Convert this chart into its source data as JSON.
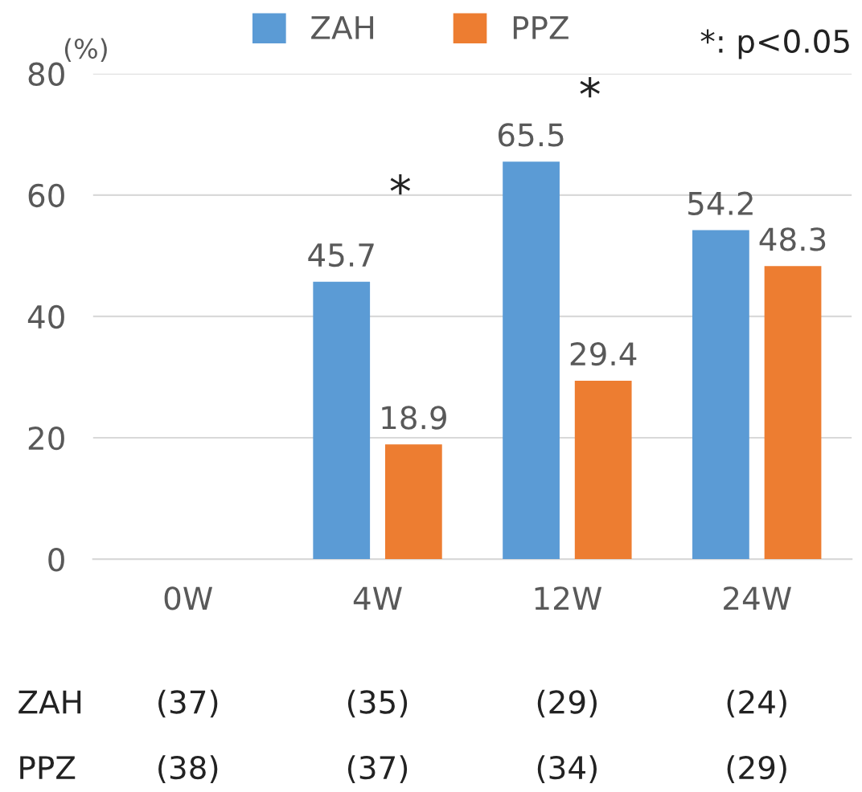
{
  "chart_data": {
    "type": "bar",
    "ylabel": "(%)",
    "categories": [
      "0W",
      "4W",
      "12W",
      "24W"
    ],
    "series": [
      {
        "name": "ZAH",
        "color": "#5b9bd5",
        "values": [
          null,
          45.7,
          65.5,
          54.2
        ]
      },
      {
        "name": "PPZ",
        "color": "#ed7d31",
        "values": [
          null,
          18.9,
          29.4,
          48.3
        ]
      }
    ],
    "ylim": [
      0,
      80
    ],
    "yticks": [
      0,
      20,
      40,
      60,
      80
    ],
    "grid": "y",
    "legend": "top",
    "data_labels": true,
    "annotations": [
      "*",
      "*",
      "*: p<0.05",
      "ZAH",
      "(37)",
      "(35)",
      "(29)",
      "(24)",
      "PPZ",
      "(38)",
      "(37)",
      "(34)",
      "(29)"
    ]
  }
}
